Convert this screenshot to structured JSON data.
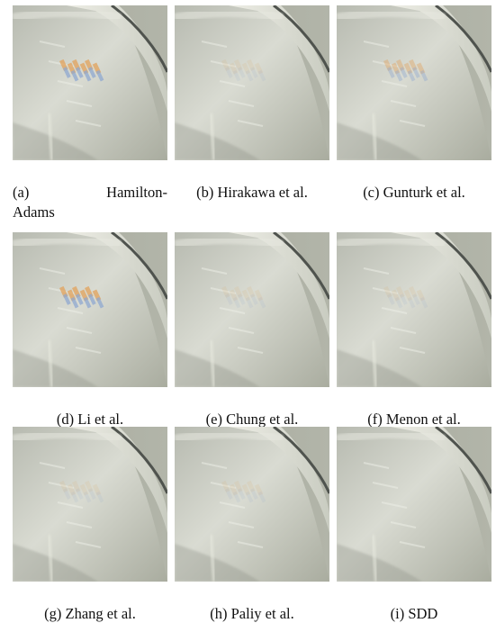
{
  "figure": {
    "panels": [
      {
        "caption": "(a) Hamilton-Adams",
        "caption_line1_left": "(a)",
        "caption_line1_right": "Hamilton-",
        "caption_line2": "Adams",
        "artifact": "strong"
      },
      {
        "caption": "(b) Hirakawa et al.",
        "artifact": "mild"
      },
      {
        "caption": "(c) Gunturk et al.",
        "artifact": "light"
      },
      {
        "caption": "(d) Li et al.",
        "artifact": "strong"
      },
      {
        "caption": "(e) Chung et al.",
        "artifact": "mild"
      },
      {
        "caption": "(f) Menon et al.",
        "artifact": "mild"
      },
      {
        "caption": "(g) Zhang et al.",
        "artifact": "mild"
      },
      {
        "caption": "(h) Paliy et al.",
        "artifact": "mild"
      },
      {
        "caption": "(i) SDD",
        "artifact": "none"
      }
    ],
    "colors": {
      "background_gray": "#a7aa9e",
      "surface_light": "#d9dbd2",
      "surface_mid": "#b7bab0",
      "shadow_dark": "#8e9187",
      "edge_dark": "#4f534e",
      "artifact_orange": "#e2a15b",
      "artifact_blue": "#8fa8d0"
    }
  }
}
